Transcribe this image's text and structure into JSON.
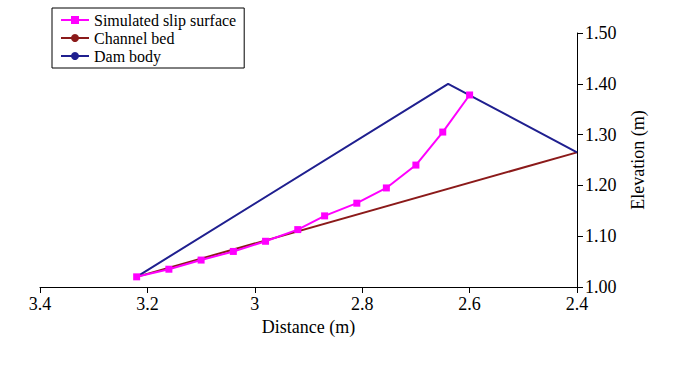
{
  "chart_data": {
    "type": "line",
    "x_label": "Distance (m)",
    "y_label": "Elevation (m)",
    "xlim": [
      3.4,
      2.4
    ],
    "xticks": [
      3.4,
      3.2,
      3,
      2.8,
      2.6,
      2.4
    ],
    "ylim": [
      1.0,
      1.5
    ],
    "yticks": [
      {
        "value": 1.0,
        "label": "1.00"
      },
      {
        "value": 1.1,
        "label": "1.10"
      },
      {
        "value": 1.2,
        "label": "1.20"
      },
      {
        "value": 1.3,
        "label": "1.30"
      },
      {
        "value": 1.4,
        "label": "1.40"
      },
      {
        "value": 1.5,
        "label": "1.50"
      }
    ],
    "grid": false,
    "legend": "upper left",
    "series": [
      {
        "name": "Simulated slip surface",
        "color": "#ff00ff",
        "marker": "square",
        "line_style": "solid",
        "x": [
          3.22,
          3.16,
          3.1,
          3.04,
          2.98,
          2.92,
          2.87,
          2.81,
          2.755,
          2.7,
          2.65,
          2.6
        ],
        "values": [
          1.02,
          1.035,
          1.053,
          1.07,
          1.09,
          1.113,
          1.14,
          1.165,
          1.195,
          1.24,
          1.305,
          1.378
        ]
      },
      {
        "name": "Channel bed",
        "color": "#8b1a1a",
        "marker": "none",
        "line_style": "solid",
        "x": [
          3.22,
          2.4
        ],
        "values": [
          1.02,
          1.265
        ]
      },
      {
        "name": "Dam body",
        "color": "#1f1f8f",
        "marker": "none",
        "line_style": "solid",
        "x": [
          3.22,
          2.64,
          2.4
        ],
        "values": [
          1.02,
          1.4,
          1.265
        ]
      }
    ]
  }
}
